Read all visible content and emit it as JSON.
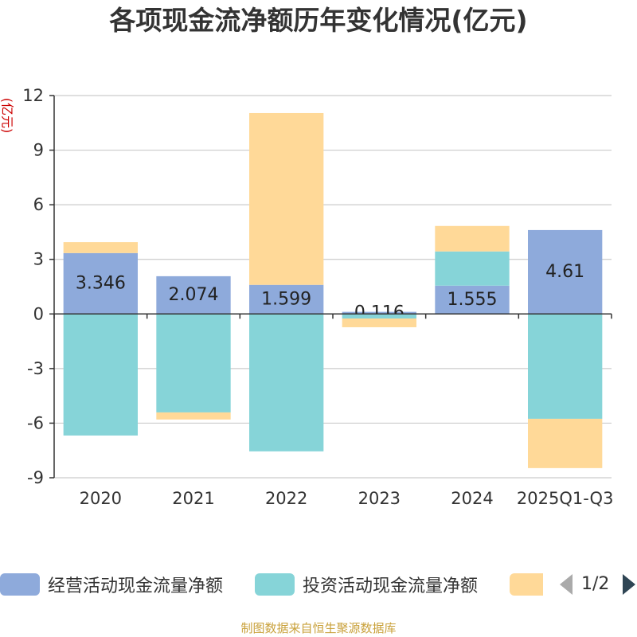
{
  "chart_data": {
    "type": "bar",
    "stacked": true,
    "title": "各项现金流净额历年变化情况(亿元)",
    "ylabel": "(亿元)",
    "xlabel": "",
    "categories": [
      "2020",
      "2021",
      "2022",
      "2023",
      "2024",
      "2025Q1-Q3"
    ],
    "ylim": [
      -9,
      12
    ],
    "yticks": [
      12,
      9,
      6,
      3,
      0,
      -3,
      -6,
      -9
    ],
    "grid": true,
    "legend_position": "bottom",
    "series": [
      {
        "name": "经营活动现金流量净额",
        "color": "#8eaadb",
        "values": [
          3.346,
          2.074,
          1.599,
          0.116,
          1.555,
          4.61
        ]
      },
      {
        "name": "投资活动现金流量净额",
        "color": "#86d4d8",
        "values": [
          -6.68,
          -5.41,
          -7.55,
          -0.25,
          1.88,
          -5.76
        ]
      },
      {
        "color": "#ffd998",
        "values": [
          0.6,
          -0.39,
          9.44,
          -0.48,
          1.4,
          -2.71
        ]
      }
    ]
  },
  "legend": {
    "pager": "1/2"
  },
  "footer": "制图数据来自恒生聚源数据库"
}
